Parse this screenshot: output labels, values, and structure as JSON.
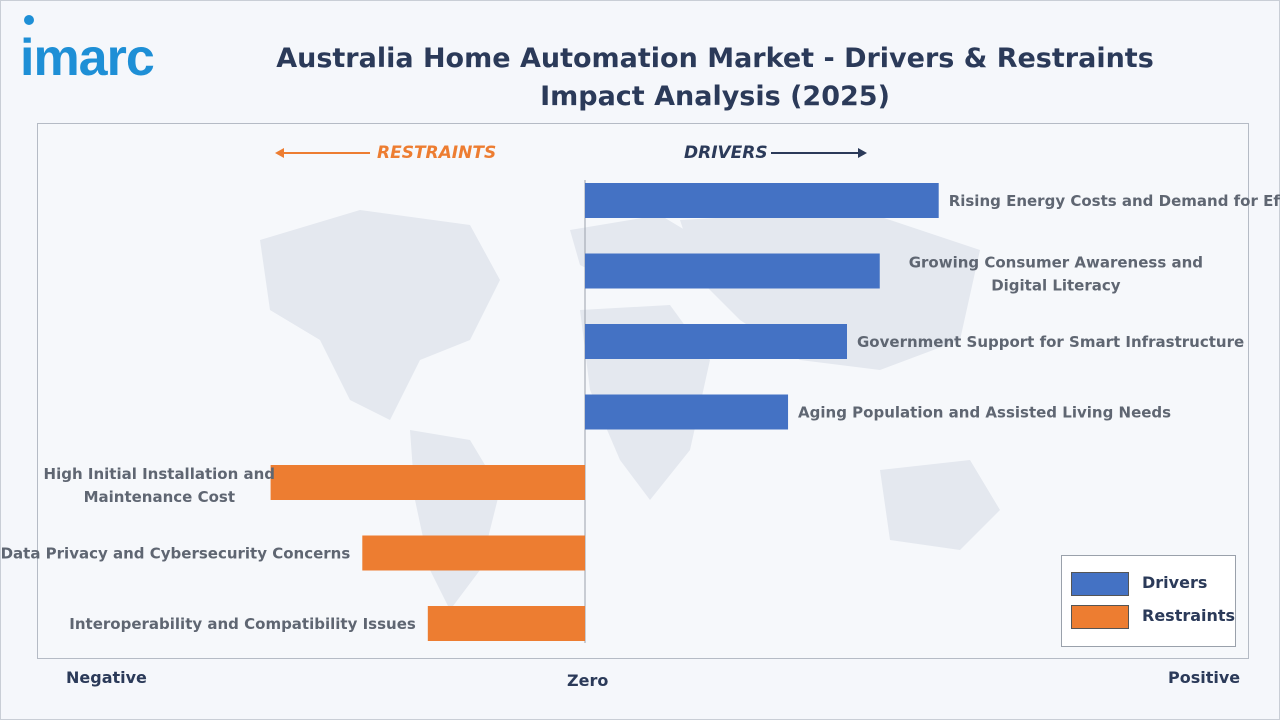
{
  "header": {
    "logo_text": "imarc",
    "title": "Australia Home Automation Market - Drivers & Restraints Impact Analysis (2025)"
  },
  "direction_labels": {
    "restraints": "RESTRAINTS",
    "drivers": "DRIVERS"
  },
  "axis_labels": {
    "negative": "Negative",
    "zero": "Zero",
    "positive": "Positive"
  },
  "legend": {
    "items": [
      {
        "label": "Drivers",
        "color": "#4472c4"
      },
      {
        "label": "Restraints",
        "color": "#ed7d31"
      }
    ]
  },
  "colors": {
    "drivers": "#4472c4",
    "restraints": "#ed7d31",
    "title": "#2b3a59",
    "label": "#5f6672"
  },
  "chart_data": {
    "type": "bar",
    "orientation": "horizontal-diverging",
    "title": "Australia Home Automation Market - Drivers & Restraints Impact Analysis (2025)",
    "xlabel": "",
    "ylabel": "",
    "xlim": [
      -1,
      1
    ],
    "grid": false,
    "legend_position": "bottom-right",
    "series": [
      {
        "name": "Drivers",
        "color": "#4472c4",
        "items": [
          {
            "category": "Rising Energy Costs and Demand for Efficiency",
            "value": 0.54
          },
          {
            "category": "Growing Consumer Awareness and Digital Literacy",
            "value": 0.45
          },
          {
            "category": "Government Support for Smart Infrastructure",
            "value": 0.4
          },
          {
            "category": "Aging Population and Assisted Living Needs",
            "value": 0.31
          }
        ]
      },
      {
        "name": "Restraints",
        "color": "#ed7d31",
        "items": [
          {
            "category": "High Initial Installation and Maintenance Cost",
            "value": -0.48
          },
          {
            "category": "Data Privacy and Cybersecurity Concerns",
            "value": -0.34
          },
          {
            "category": "Interoperability and Compatibility Issues",
            "value": -0.24
          }
        ]
      }
    ]
  }
}
